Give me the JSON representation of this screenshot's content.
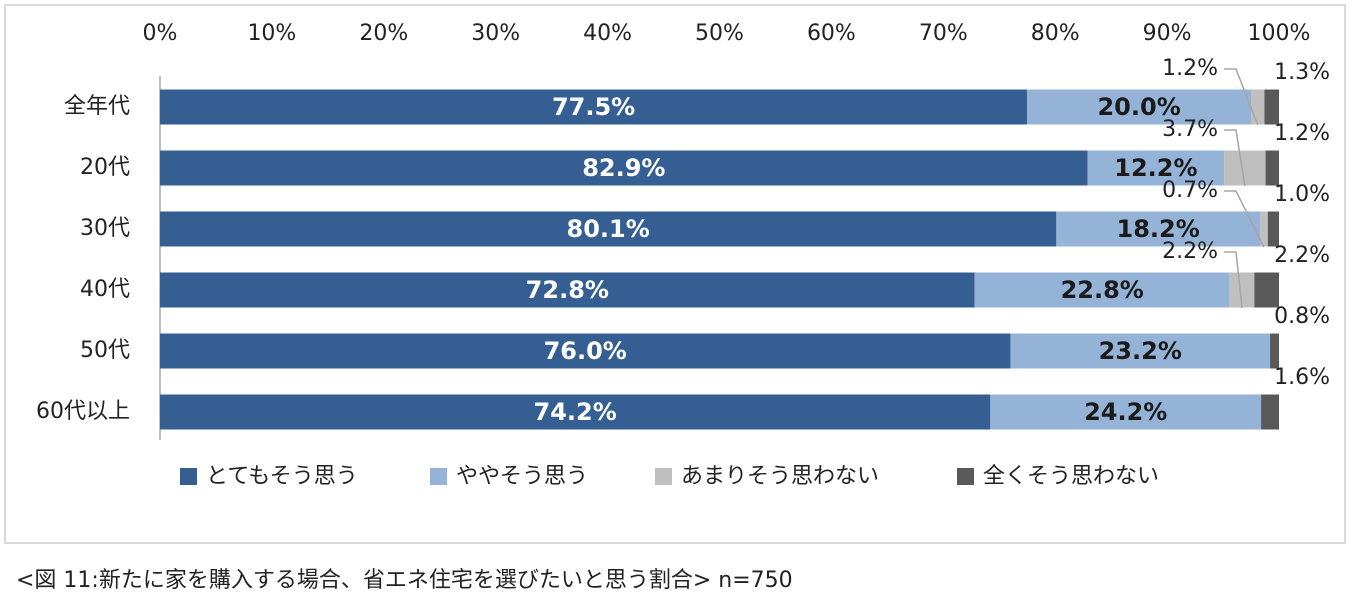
{
  "chart_data": {
    "type": "bar",
    "orientation": "horizontal",
    "stacked": "100%",
    "xlim": [
      0,
      100
    ],
    "x_ticks": [
      "0%",
      "10%",
      "20%",
      "30%",
      "40%",
      "50%",
      "60%",
      "70%",
      "80%",
      "90%",
      "100%"
    ],
    "categories": [
      "全年代",
      "20代",
      "30代",
      "40代",
      "50代",
      "60代以上"
    ],
    "series": [
      {
        "name": "とてもそう思う",
        "color": "#355f92",
        "values": [
          77.5,
          82.9,
          80.1,
          72.8,
          76.0,
          74.2
        ],
        "labels": [
          "77.5%",
          "82.9%",
          "80.1%",
          "72.8%",
          "76.0%",
          "74.2%"
        ]
      },
      {
        "name": "ややそう思う",
        "color": "#95b3d7",
        "values": [
          20.0,
          12.2,
          18.2,
          22.8,
          23.2,
          24.2
        ],
        "labels": [
          "20.0%",
          "12.2%",
          "18.2%",
          "22.8%",
          "23.2%",
          "24.2%"
        ]
      },
      {
        "name": "あまりそう思わない",
        "color": "#bfbfbf",
        "values": [
          1.2,
          3.7,
          0.7,
          2.2,
          0.0,
          0.0
        ],
        "labels": [
          "1.2%",
          "3.7%",
          "0.7%",
          "2.2%",
          "",
          ""
        ]
      },
      {
        "name": "全くそう思わない",
        "color": "#595959",
        "values": [
          1.3,
          1.2,
          1.0,
          2.2,
          0.8,
          1.6
        ],
        "labels": [
          "1.3%",
          "1.2%",
          "1.0%",
          "2.2%",
          "0.8%",
          "1.6%"
        ]
      }
    ],
    "legend_position": "bottom",
    "grid": false
  },
  "caption": "<図 11:新たに家を購入する場合、省エネ住宅を選びたいと思う割合> n=750"
}
